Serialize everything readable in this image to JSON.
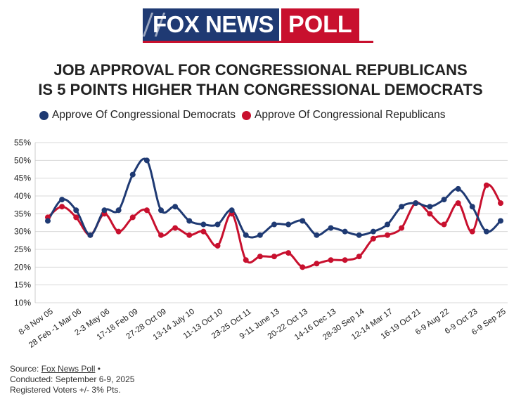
{
  "logo": {
    "brand": "FOX NEWS",
    "poll": "POLL"
  },
  "title_line1": "JOB APPROVAL FOR CONGRESSIONAL REPUBLICANS",
  "title_line2": "IS 5 POINTS HIGHER THAN CONGRESSIONAL DEMOCRATS",
  "footer": {
    "source_prefix": "Source:",
    "source_link": "Fox News Poll",
    "source_suffix": "•",
    "conducted": "Conducted: September 6-9, 2025",
    "voters": "Registered Voters +/- 3% Pts."
  },
  "colors": {
    "democrats": "#1f3a73",
    "republicans": "#c8102e",
    "grid": "#d9d9d9"
  },
  "chart_data": {
    "type": "line",
    "title": "JOB APPROVAL FOR CONGRESSIONAL REPUBLICANS IS 5 POINTS HIGHER THAN CONGRESSIONAL DEMOCRATS",
    "xlabel": "",
    "ylabel": "",
    "ylim": [
      10,
      55
    ],
    "y_ticks": [
      "10%",
      "15%",
      "20%",
      "25%",
      "30%",
      "35%",
      "40%",
      "45%",
      "50%",
      "55%"
    ],
    "x_tick_labels": [
      "8-9 Nov 05",
      "28 Feb -1 Mar 06",
      "2-3 May 06",
      "17-18 Feb 09",
      "27-28 Oct 09",
      "13-14 July 10",
      "11-13 Oct 10",
      "23-25 Oct 11",
      "9-11 June 13",
      "20-22 Oct 13",
      "14-16 Dec 13",
      "28-30 Sep 14",
      "12-14 Mar 17",
      "16-19 Oct 21",
      "6-9 Aug 22",
      "6-9 Oct 23",
      "6-9 Sep 25"
    ],
    "grid": true,
    "legend_position": "top",
    "series": [
      {
        "name": "Approve Of Congressional Democrats",
        "color": "#1f3a73",
        "values": [
          33,
          39,
          36,
          29,
          36,
          36,
          46,
          50,
          36,
          37,
          33,
          32,
          32,
          36,
          29,
          29,
          32,
          32,
          33,
          29,
          31,
          30,
          29,
          30,
          32,
          37,
          38,
          37,
          39,
          42,
          37,
          30,
          33
        ]
      },
      {
        "name": "Approve Of Congressional Republicans",
        "color": "#c8102e",
        "values": [
          34,
          37,
          34,
          29,
          35,
          30,
          34,
          36,
          29,
          31,
          29,
          30,
          26,
          35,
          22,
          23,
          23,
          24,
          20,
          21,
          22,
          22,
          23,
          28,
          29,
          31,
          38,
          35,
          32,
          38,
          30,
          43,
          38
        ]
      }
    ]
  }
}
